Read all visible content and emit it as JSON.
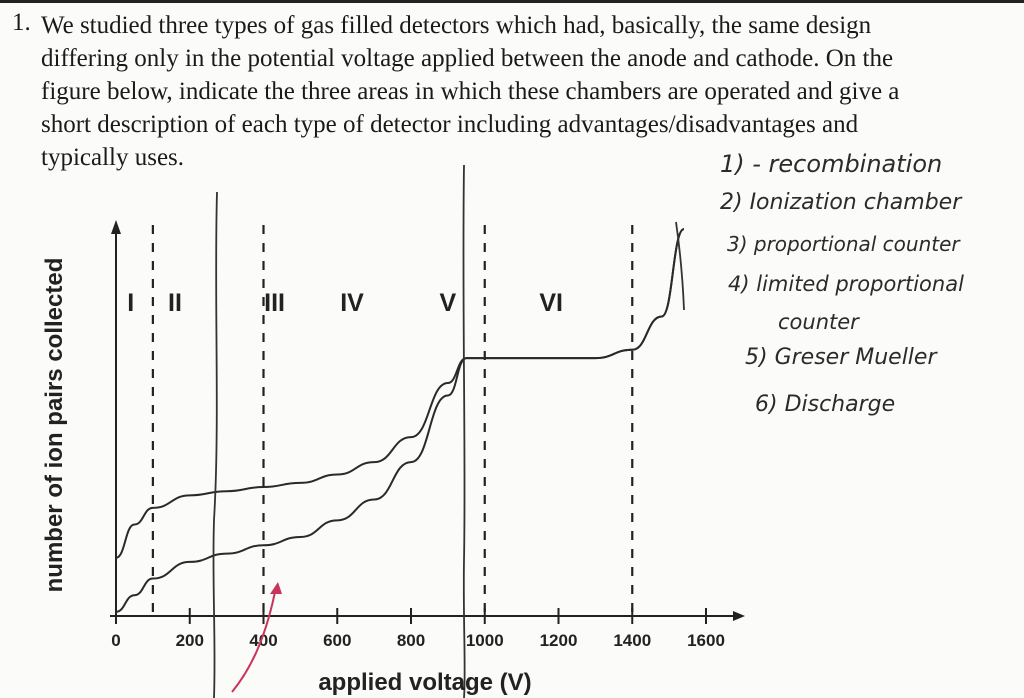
{
  "question": {
    "number": "1.",
    "lines": [
      "We studied three types of gas filled detectors which had, basically, the same design",
      "differing only in the potential voltage applied between the anode and cathode.  On the",
      "figure below, indicate the three areas in which these chambers are operated and give a",
      "short description of each type of detector including advantages/disadvantages and",
      "typically uses."
    ]
  },
  "chart_data": {
    "type": "line",
    "title": "",
    "xlabel": "applied voltage (V)",
    "ylabel": "number of ion pairs collected",
    "x_ticks": [
      "0",
      "200",
      "400",
      "600",
      "800",
      "1000",
      "1200",
      "1400",
      "1600"
    ],
    "xlim": [
      0,
      1600
    ],
    "regions": [
      "I",
      "II",
      "III",
      "IV",
      "V",
      "VI"
    ],
    "region_boundaries_v": [
      100,
      400,
      1000,
      1400
    ],
    "grid": false,
    "series": [
      {
        "x": [
          0,
          50,
          100,
          200,
          300,
          400,
          500,
          600,
          700,
          800,
          900,
          950,
          1000,
          1100,
          1200,
          1300,
          1400,
          1480,
          1540
        ],
        "y": [
          0.14,
          0.22,
          0.26,
          0.29,
          0.3,
          0.31,
          0.32,
          0.34,
          0.37,
          0.43,
          0.56,
          0.62,
          0.62,
          0.62,
          0.62,
          0.62,
          0.64,
          0.72,
          0.93
        ]
      },
      {
        "x": [
          0,
          50,
          100,
          200,
          300,
          400,
          500,
          600,
          700,
          800,
          900,
          950,
          1000,
          1100,
          1200,
          1300,
          1400,
          1480,
          1540
        ],
        "y": [
          0.01,
          0.05,
          0.09,
          0.13,
          0.15,
          0.17,
          0.19,
          0.23,
          0.28,
          0.37,
          0.53,
          0.62,
          0.62,
          0.62,
          0.62,
          0.62,
          0.64,
          0.72,
          0.93
        ]
      }
    ]
  },
  "annotations": {
    "handwritten_notes": [
      "1) - recombination",
      "2) Ionization chamber",
      "3) proportional counter",
      "4) limited proportional",
      "counter",
      "5) Greser Mueller",
      "6) Discharge"
    ]
  }
}
